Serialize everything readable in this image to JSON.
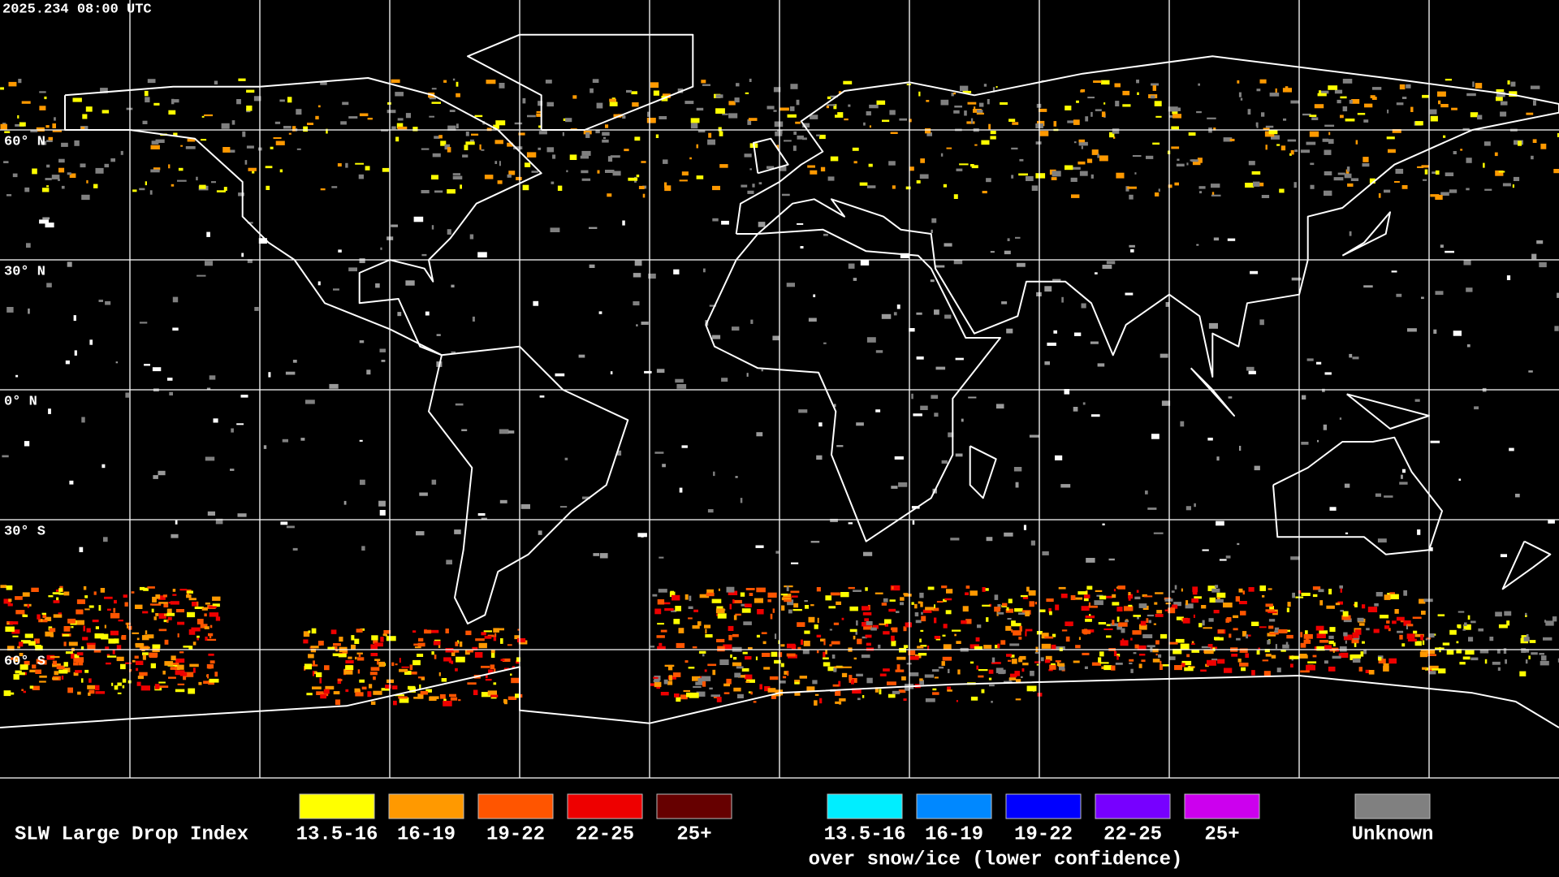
{
  "header": {
    "timestamp": "2025.234 08:00 UTC"
  },
  "map": {
    "lat_labels": [
      "60° N",
      "30° N",
      "0° N",
      "30° S",
      "60° S"
    ]
  },
  "legend": {
    "title": "SLW Large Drop Index",
    "items": [
      {
        "label": "13.5-16",
        "color": "#ffff00"
      },
      {
        "label": "16-19",
        "color": "#ff9900"
      },
      {
        "label": "19-22",
        "color": "#ff5500"
      },
      {
        "label": "22-25",
        "color": "#ee0000"
      },
      {
        "label": "25+",
        "color": "#660000"
      }
    ],
    "snow_items": [
      {
        "label": "13.5-16",
        "color": "#00eeff"
      },
      {
        "label": "16-19",
        "color": "#0088ff"
      },
      {
        "label": "19-22",
        "color": "#0000ff"
      },
      {
        "label": "22-25",
        "color": "#7700ff"
      },
      {
        "label": "25+",
        "color": "#cc00ee"
      }
    ],
    "snow_caption": "over snow/ice (lower confidence)",
    "unknown": {
      "label": "Unknown",
      "color": "#808080"
    }
  }
}
